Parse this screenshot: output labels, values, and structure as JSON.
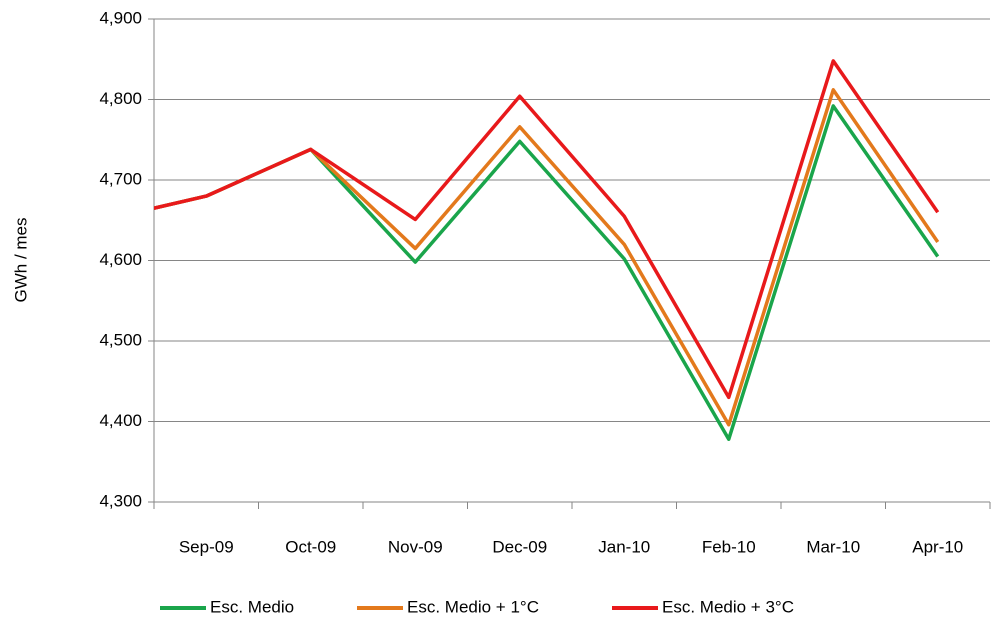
{
  "chart_data": {
    "type": "line",
    "y_label": "GWh / mes",
    "categories": [
      null,
      "Sep-09",
      "Oct-09",
      "Nov-09",
      "Dec-09",
      "Jan-10",
      "Feb-10",
      "Mar-10",
      "Apr-10"
    ],
    "series": [
      {
        "name": "Esc. Medio",
        "color": "#1aa54b",
        "values": [
          4650,
          4680,
          4738,
          4598,
          4748,
          4602,
          4378,
          4792,
          4605
        ]
      },
      {
        "name": "Esc. Medio + 1°C",
        "color": "#e3791c",
        "values": [
          4650,
          4680,
          4738,
          4615,
          4766,
          4620,
          4396,
          4812,
          4623
        ]
      },
      {
        "name": "Esc. Medio + 3°C",
        "color": "#e8191b",
        "values": [
          4650,
          4680,
          4738,
          4651,
          4804,
          4655,
          4430,
          4848,
          4660
        ]
      }
    ],
    "ylim": [
      4300,
      4900
    ],
    "yticks": [
      {
        "value": 4300,
        "label": "4,300"
      },
      {
        "value": 4400,
        "label": "4,400"
      },
      {
        "value": 4500,
        "label": "4,500"
      },
      {
        "value": 4600,
        "label": "4,600"
      },
      {
        "value": 4700,
        "label": "4,700"
      },
      {
        "value": 4800,
        "label": "4,800"
      },
      {
        "value": 4900,
        "label": "4,900"
      }
    ],
    "grid": true,
    "legend": "bottom"
  }
}
